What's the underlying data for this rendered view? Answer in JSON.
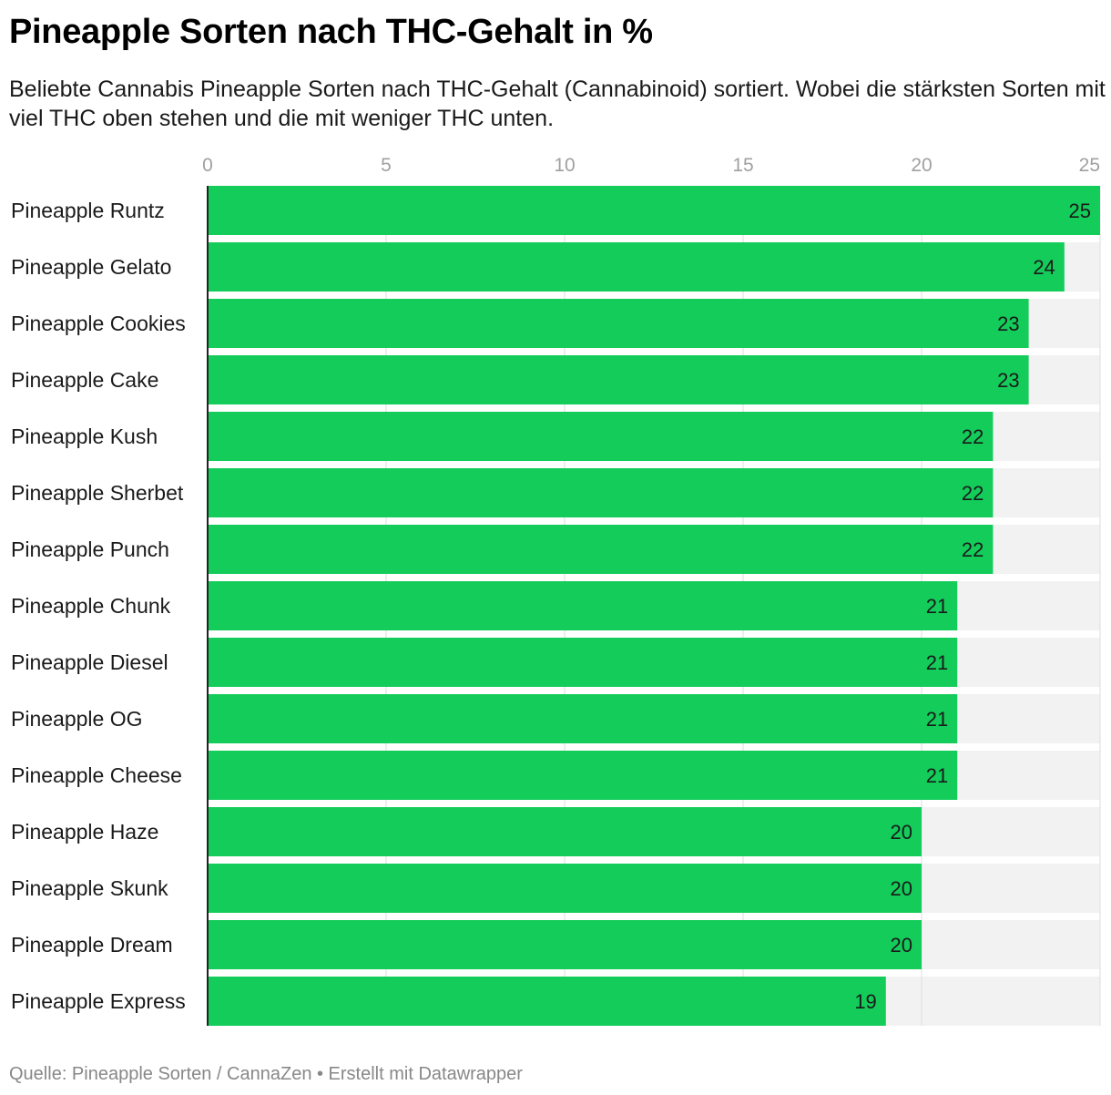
{
  "title": "Pineapple Sorten nach THC-Gehalt in %",
  "subtitle": "Beliebte Cannabis Pineapple Sorten nach THC-Gehalt (Cannabinoid) sortiert. Wobei die stärksten Sorten mit viel THC oben stehen und die mit weniger THC unten.",
  "footer": "Quelle: Pineapple Sorten / CannaZen • Erstellt mit Datawrapper",
  "colors": {
    "bar": "#13cc5a",
    "track": "#f2f2f2",
    "grid": "#dddddd",
    "axis": "#222222"
  },
  "chart_data": {
    "type": "bar",
    "orientation": "horizontal",
    "title": "Pineapple Sorten nach THC-Gehalt in %",
    "xlim": [
      0,
      25
    ],
    "x_ticks": [
      0,
      5,
      10,
      15,
      20,
      25
    ],
    "x_tick_labels": [
      "0",
      "5",
      "10",
      "15",
      "20",
      "25"
    ],
    "grid": true,
    "categories": [
      "Pineapple Runtz",
      "Pineapple Gelato",
      "Pineapple Cookies",
      "Pineapple Cake",
      "Pineapple Kush",
      "Pineapple Sherbet",
      "Pineapple Punch",
      "Pineapple Chunk",
      "Pineapple Diesel",
      "Pineapple OG",
      "Pineapple Cheese",
      "Pineapple Haze",
      "Pineapple Skunk",
      "Pineapple Dream",
      "Pineapple Express"
    ],
    "values": [
      25,
      24,
      23,
      23,
      22,
      22,
      22,
      21,
      21,
      21,
      21,
      20,
      20,
      20,
      19
    ],
    "value_labels": [
      "25",
      "24",
      "23",
      "23",
      "22",
      "22",
      "22",
      "21",
      "21",
      "21",
      "21",
      "20",
      "20",
      "20",
      "19"
    ]
  }
}
